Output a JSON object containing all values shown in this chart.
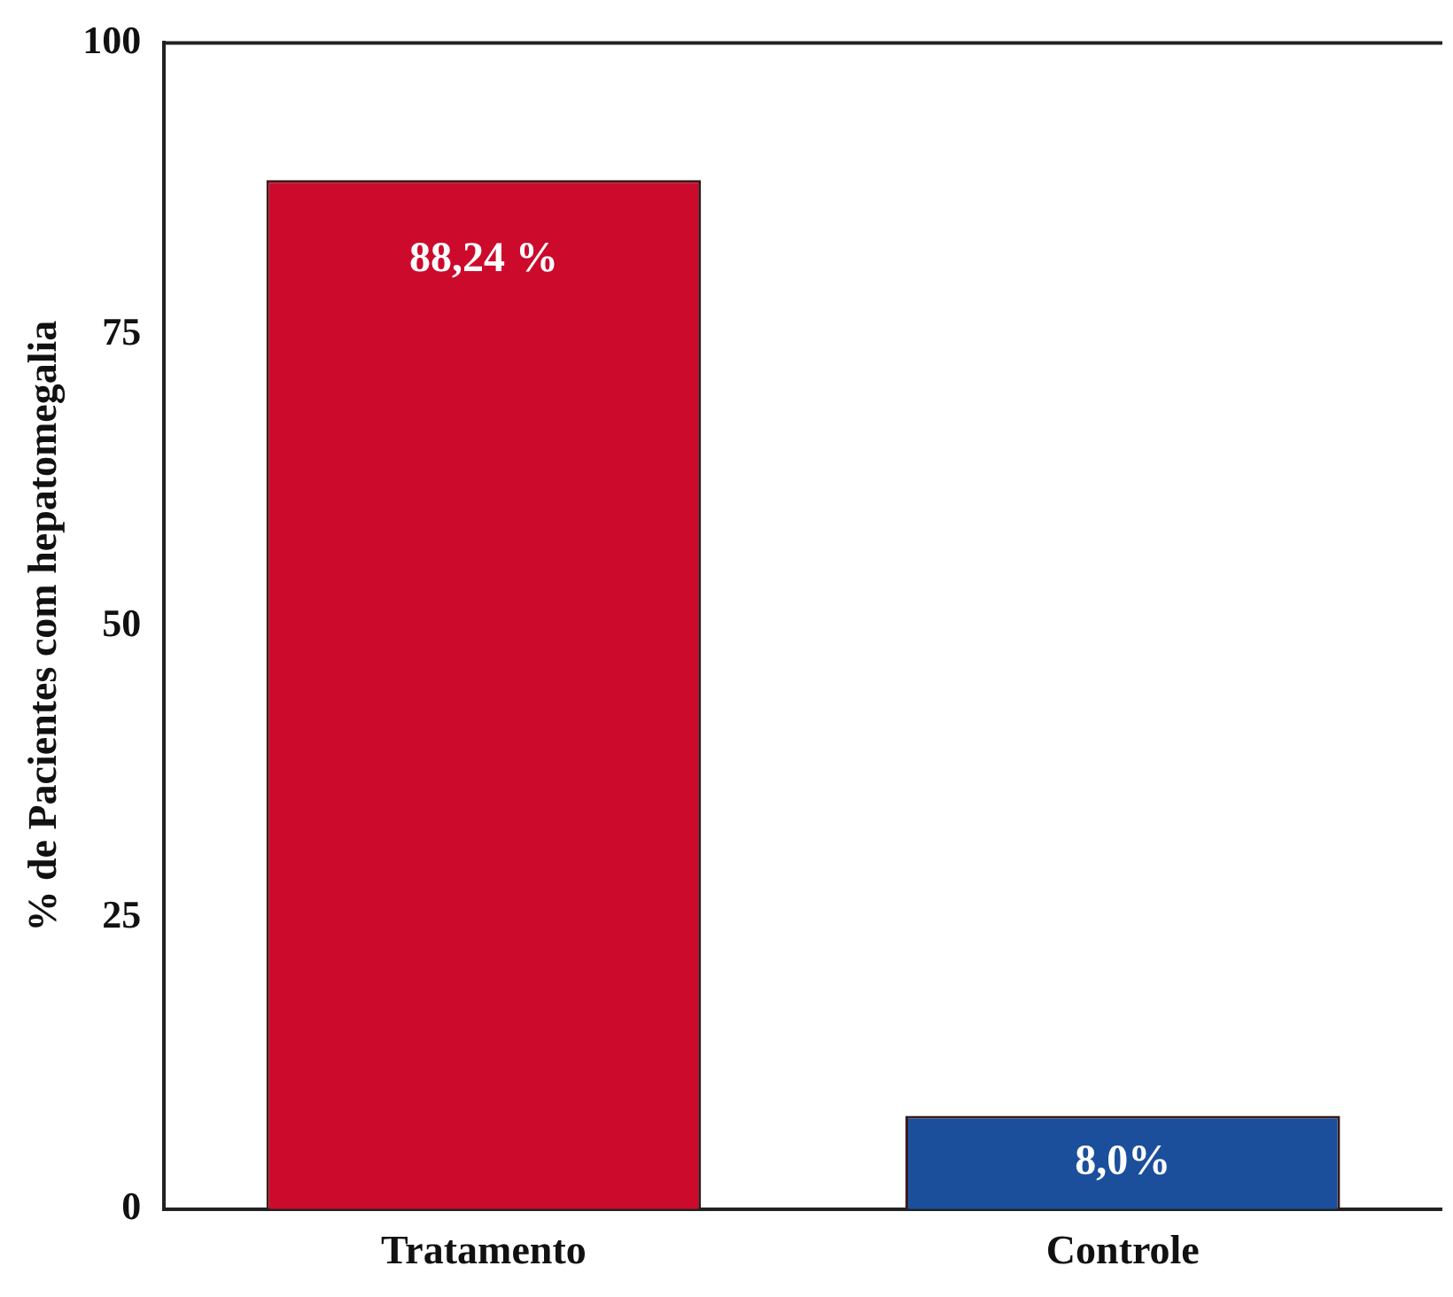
{
  "chart_data": {
    "type": "bar",
    "ylabel": "% de Pacientes com hepatomegalia",
    "categories": [
      "Tratamento",
      "Controle"
    ],
    "values": [
      88.24,
      8.0
    ],
    "colors": [
      "#cc0a2c",
      "#1b4f9c"
    ],
    "value_labels": [
      "88,24 %",
      "8,0%"
    ],
    "ylim": [
      0,
      100
    ],
    "yticks": [
      0,
      25,
      50,
      75,
      100
    ],
    "grid": false,
    "legend": false
  }
}
